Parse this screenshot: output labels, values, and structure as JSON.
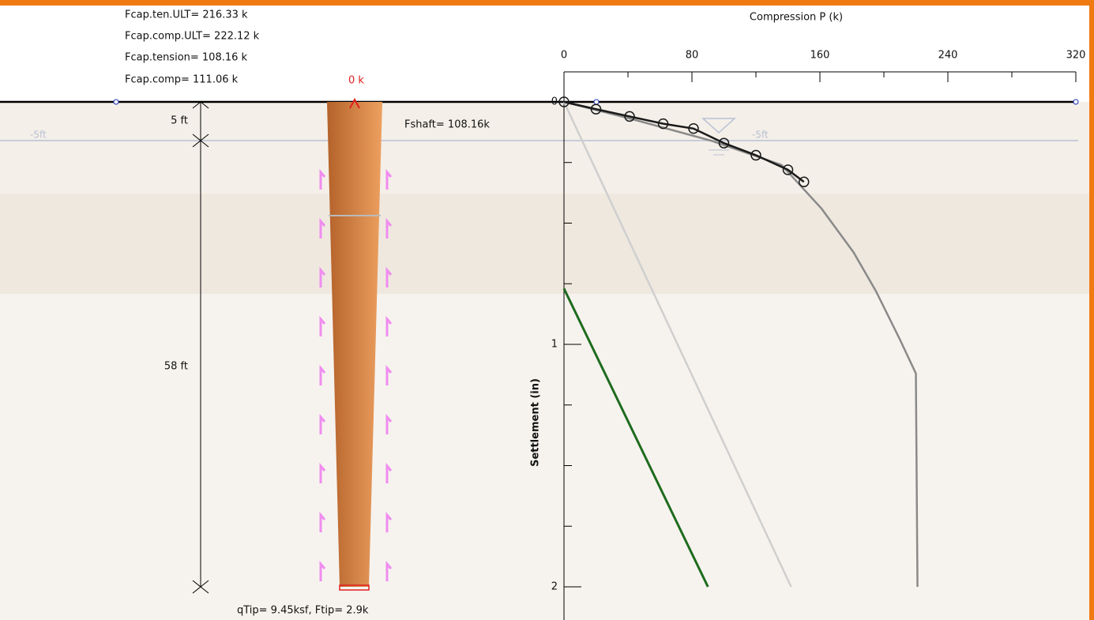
{
  "pile_panel": {
    "capacities": [
      "Fcap.ten.ULT= 216.33 k",
      "Fcap.comp.ULT= 222.12 k",
      "Fcap.tension= 108.16 k",
      "Fcap.comp= 111.06 k"
    ],
    "top_load": "0 k",
    "dimensions": [
      "5 ft",
      "58 ft"
    ],
    "shaft_force": "Fshaft= 108.16k",
    "tip_info": "qTip= 9.45ksf, Ftip= 2.9k",
    "water_labels": [
      "-5ft",
      "-5ft"
    ]
  },
  "chart_data": {
    "type": "line",
    "xlabel": "Compression P (k)",
    "ylabel": "Settlement (in)",
    "xlim": [
      0,
      320
    ],
    "xticks": [
      0,
      80,
      160,
      240,
      320
    ],
    "ylim": [
      0,
      2
    ],
    "yticks": [
      0,
      1,
      2
    ],
    "y_inverted": true,
    "series": [
      {
        "color": "#1a1a1a",
        "markers": true,
        "x": [
          0,
          20,
          41,
          62,
          81,
          100,
          120,
          140,
          150
        ],
        "values": [
          0,
          0.03,
          0.06,
          0.09,
          0.11,
          0.17,
          0.22,
          0.28,
          0.33
        ]
      },
      {
        "color": "#8a8a8a",
        "markers": false,
        "x": [
          0,
          42,
          92,
          136,
          161,
          181,
          195,
          210,
          220,
          221
        ],
        "values": [
          0,
          0.07,
          0.16,
          0.26,
          0.44,
          0.62,
          0.78,
          0.98,
          1.12,
          2
        ]
      },
      {
        "color": "#cfcfcf",
        "markers": false,
        "x": [
          0,
          142
        ],
        "values": [
          0,
          2
        ]
      },
      {
        "color": "#1e6b1e",
        "markers": false,
        "x": [
          0,
          90
        ],
        "values": [
          0.77,
          2
        ]
      }
    ]
  }
}
